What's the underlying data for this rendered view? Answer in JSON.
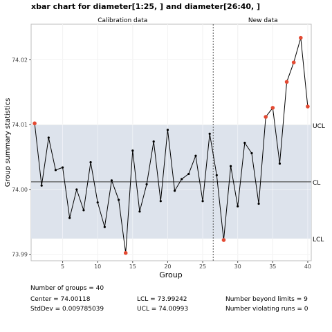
{
  "title": "xbar chart for diameter[1:25, ] and diameter[26:40, ]",
  "chart_data": {
    "type": "line",
    "xlabel": "Group",
    "ylabel": "Group summary statistics",
    "xlim": [
      0.5,
      40.5
    ],
    "ylim": [
      73.989,
      74.0255
    ],
    "x_ticks": [
      5,
      10,
      15,
      20,
      25,
      30,
      35,
      40
    ],
    "y_ticks": [
      73.99,
      74.0,
      74.01,
      74.02
    ],
    "y_tick_labels": [
      "73.99",
      "74.00",
      "74.01",
      "74.02"
    ],
    "sections": [
      {
        "label": "Calibration data",
        "from": 1,
        "to": 26
      },
      {
        "label": "New data",
        "from": 26,
        "to": 40
      }
    ],
    "split_at": 26.5,
    "limits": {
      "UCL": 74.00993,
      "CL": 74.00118,
      "LCL": 73.99242
    },
    "limit_labels": {
      "UCL": "UCL",
      "CL": "CL",
      "LCL": "LCL"
    },
    "grid": true,
    "series": [
      {
        "x": [
          1,
          2,
          3,
          4,
          5,
          6,
          7,
          8,
          9,
          10,
          11,
          12,
          13,
          14,
          15,
          16,
          17,
          18,
          19,
          20,
          21,
          22,
          23,
          24,
          25,
          26,
          27,
          28,
          29,
          30,
          31,
          32,
          33,
          34,
          35,
          36,
          37,
          38,
          39,
          40
        ],
        "values": [
          74.0102,
          74.0006,
          74.008,
          74.003,
          74.0034,
          73.9956,
          74.0,
          73.9968,
          74.0042,
          73.998,
          73.9942,
          74.0014,
          73.9984,
          73.9902,
          74.006,
          73.9966,
          74.0008,
          74.0074,
          73.9982,
          74.0092,
          73.9998,
          74.0016,
          74.0024,
          74.0052,
          73.9982,
          74.0086,
          74.0022,
          73.9922,
          74.0036,
          73.9974,
          74.0072,
          74.0056,
          73.9978,
          74.0112,
          74.0126,
          74.004,
          74.0166,
          74.0196,
          74.0234,
          74.0128
        ]
      }
    ],
    "colors": {
      "line": "#000000",
      "point": "#000000",
      "violation": "#e34a33",
      "band": "#dde3ec",
      "grid": "#e6e6e6",
      "center": "#555555"
    }
  },
  "stats": {
    "groups": "Number of groups = 40",
    "center": "Center = 74.00118",
    "stddev": "StdDev = 0.009785039",
    "lcl": "LCL = 73.99242",
    "ucl": "UCL = 74.00993",
    "beyond": "Number beyond limits = 9",
    "runs": "Number violating runs = 0"
  }
}
